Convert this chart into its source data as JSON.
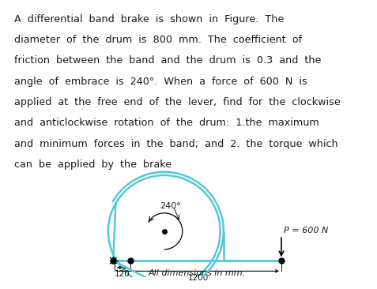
{
  "background": "#ffffff",
  "drum_color": "#55c8d8",
  "text_color": "#1a1a1a",
  "angle_label": "240°",
  "dim1_label": "120",
  "dim2_label": "1200",
  "force_label": "P = 600 N",
  "bottom_note": "All dimensions in mm.",
  "font_size_text": 9.2,
  "font_size_label": 8.0,
  "text_lines": [
    "A  differential  band  brake  is  shown  in  Figure.  The",
    "diameter  of  the  drum  is  800  mm.  The  coefficient  of",
    "friction  between  the  band  and  the  drum  is  0.3  and  the",
    "angle  of  embrace  is  240°.  When  a  force  of  600  N  is",
    "applied  at  the  free  end  of  the  lever,  find  for  the  clockwise",
    "and  anticlockwise  rotation  of  the  drum:  1.the  maximum",
    "and  minimum  forces  in  the  band;  and  2.  the  torque  which",
    "can  be  applied  by  the  brake"
  ]
}
